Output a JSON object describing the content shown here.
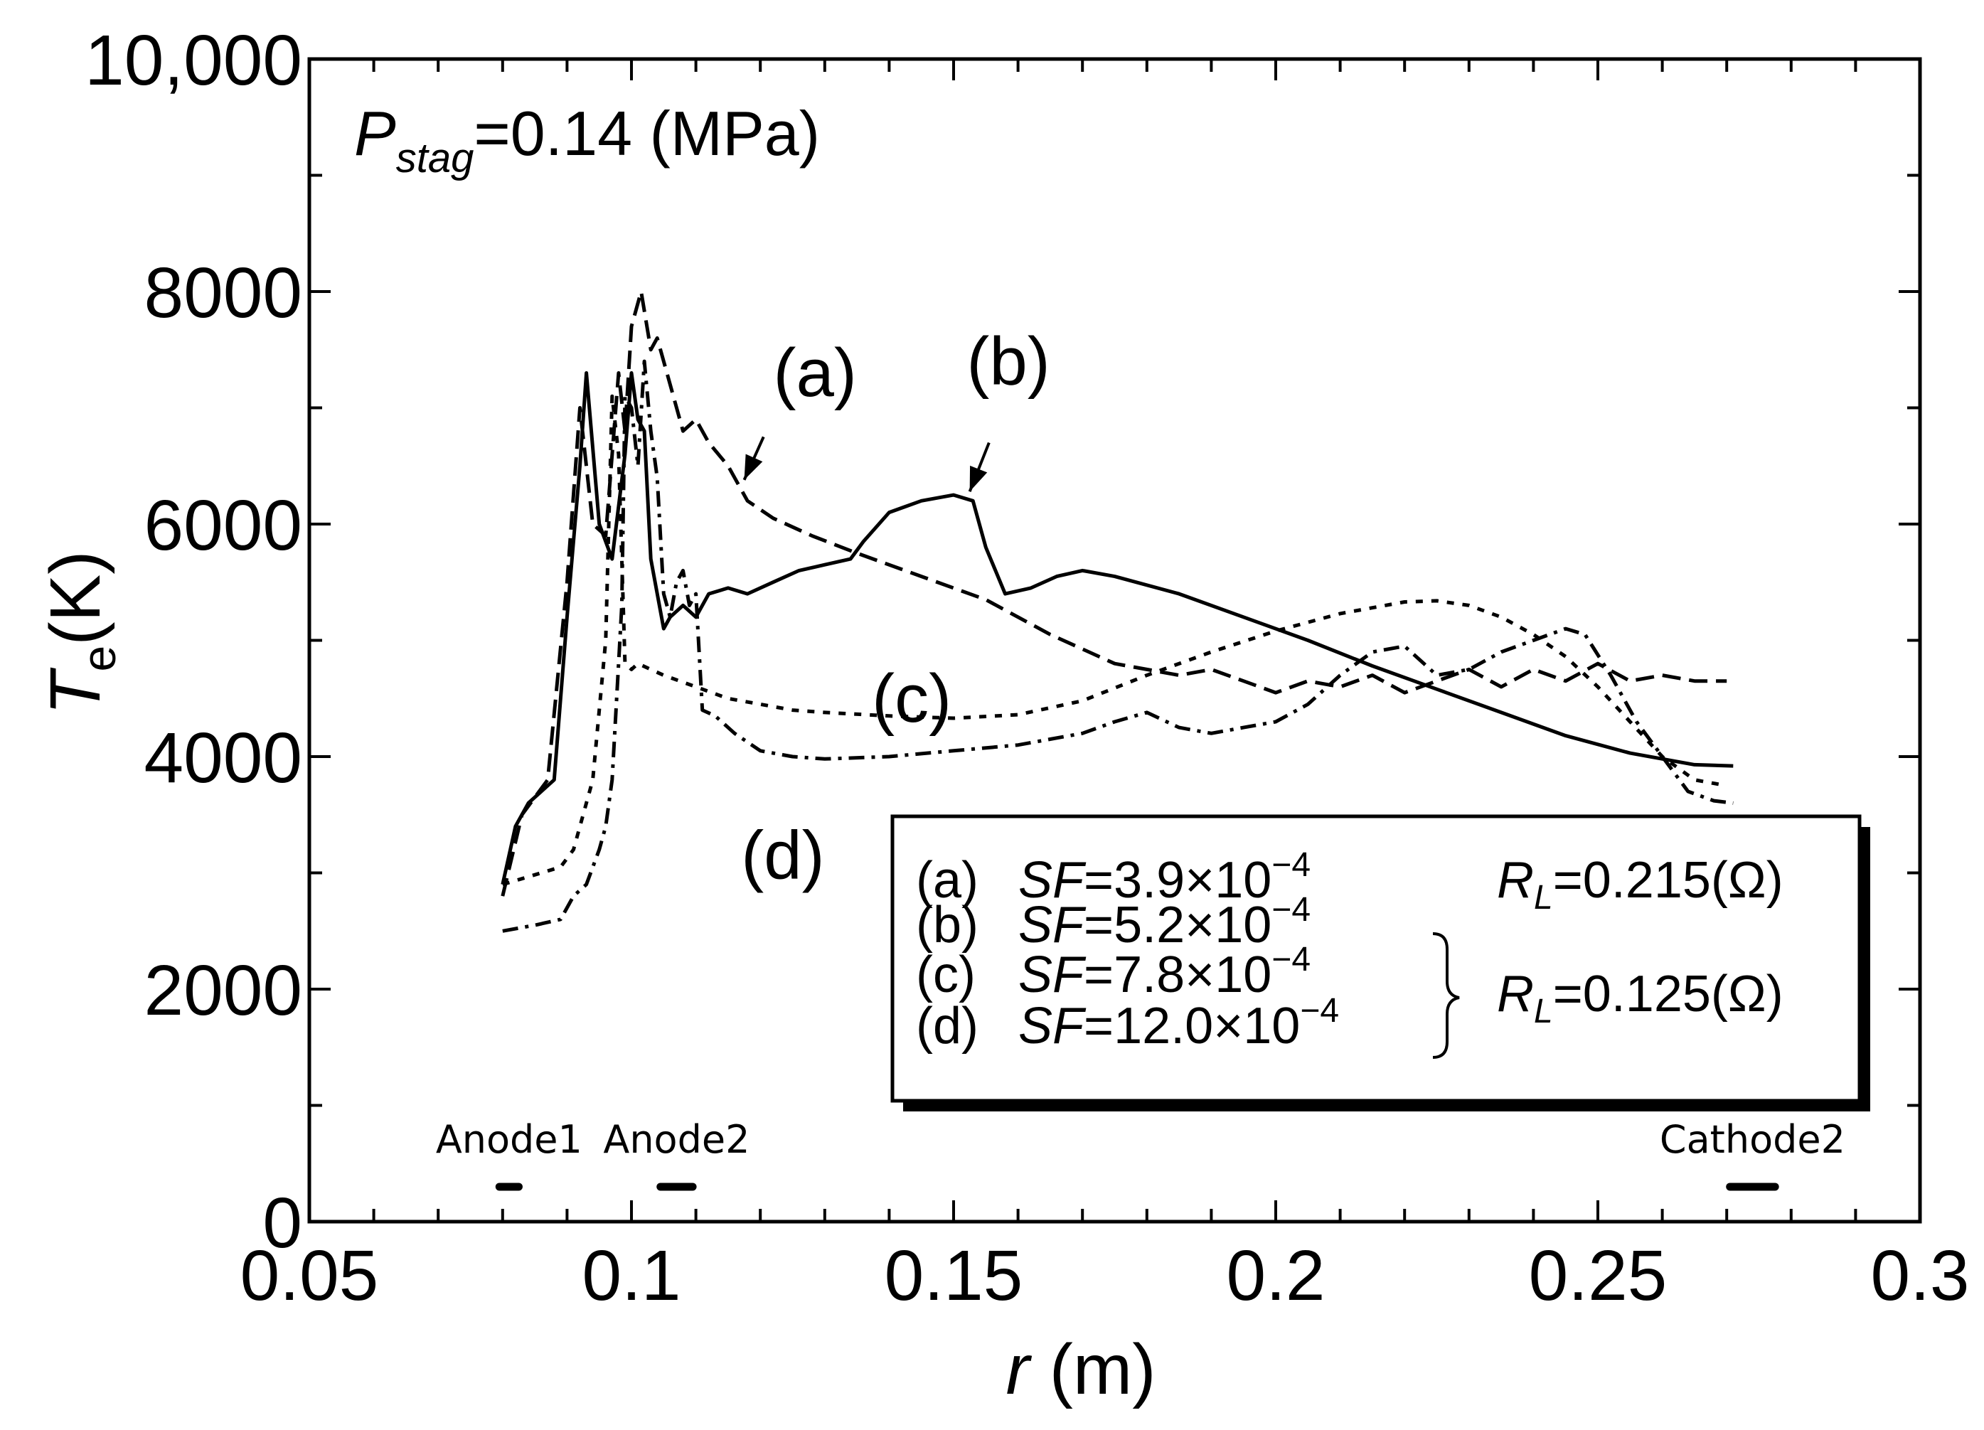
{
  "chart_data": {
    "type": "line",
    "title": "",
    "annotation": {
      "italic": "P",
      "sub": "stag",
      "text": "=0.14 (MPa)"
    },
    "xlabel": {
      "italic": "r",
      "text": " (m)"
    },
    "ylabel": {
      "italic": "T",
      "sub": "e",
      "text": "(K)"
    },
    "xlim": [
      0.05,
      0.3
    ],
    "ylim": [
      0,
      10000
    ],
    "x_ticks": [
      0.05,
      0.1,
      0.15,
      0.2,
      0.25,
      0.3
    ],
    "x_tick_labels": [
      "0.05",
      "0.1",
      "0.15",
      "0.2",
      "0.25",
      "0.3"
    ],
    "y_ticks": [
      0,
      2000,
      4000,
      6000,
      8000,
      10000
    ],
    "y_tick_labels": [
      "0",
      "2000",
      "4000",
      "6000",
      "8000",
      "10,000"
    ],
    "series": [
      {
        "name": "(a)",
        "style": "dashed",
        "x": [
          0.08,
          0.083,
          0.087,
          0.09,
          0.092,
          0.094,
          0.096,
          0.098,
          0.099,
          0.1,
          0.1015,
          0.103,
          0.104,
          0.106,
          0.108,
          0.11,
          0.112,
          0.115,
          0.118,
          0.122,
          0.128,
          0.135,
          0.145,
          0.155,
          0.165,
          0.175,
          0.185,
          0.19,
          0.195,
          0.2,
          0.205,
          0.21,
          0.215,
          0.22,
          0.225,
          0.23,
          0.235,
          0.24,
          0.245,
          0.25,
          0.255,
          0.26,
          0.265,
          0.27
        ],
        "y": [
          2800,
          3500,
          3800,
          5500,
          7000,
          6000,
          5900,
          7300,
          6800,
          7700,
          8000,
          7500,
          7600,
          7200,
          6800,
          6900,
          6700,
          6500,
          6200,
          6050,
          5900,
          5750,
          5550,
          5350,
          5050,
          4800,
          4700,
          4750,
          4650,
          4550,
          4650,
          4600,
          4700,
          4550,
          4650,
          4750,
          4600,
          4750,
          4650,
          4800,
          4650,
          4700,
          4650,
          4650
        ]
      },
      {
        "name": "(b)",
        "style": "solid",
        "x": [
          0.08,
          0.082,
          0.084,
          0.088,
          0.09,
          0.092,
          0.093,
          0.095,
          0.097,
          0.099,
          0.1,
          0.101,
          0.102,
          0.103,
          0.105,
          0.106,
          0.108,
          0.11,
          0.112,
          0.115,
          0.118,
          0.122,
          0.126,
          0.13,
          0.134,
          0.136,
          0.14,
          0.145,
          0.15,
          0.153,
          0.155,
          0.158,
          0.162,
          0.166,
          0.17,
          0.175,
          0.185,
          0.195,
          0.205,
          0.215,
          0.225,
          0.235,
          0.245,
          0.255,
          0.265,
          0.271
        ],
        "y": [
          2900,
          3400,
          3600,
          3800,
          5200,
          6500,
          7300,
          6000,
          5700,
          6600,
          7300,
          6900,
          6800,
          5700,
          5100,
          5200,
          5300,
          5200,
          5400,
          5450,
          5400,
          5500,
          5600,
          5650,
          5700,
          5850,
          6100,
          6200,
          6250,
          6200,
          5800,
          5400,
          5450,
          5550,
          5600,
          5550,
          5400,
          5200,
          5000,
          4780,
          4580,
          4380,
          4180,
          4030,
          3930,
          3920
        ]
      },
      {
        "name": "(c)",
        "style": "dotted",
        "x": [
          0.08,
          0.083,
          0.086,
          0.089,
          0.091,
          0.094,
          0.096,
          0.097,
          0.098,
          0.099,
          0.1,
          0.101,
          0.103,
          0.105,
          0.11,
          0.115,
          0.12,
          0.125,
          0.13,
          0.14,
          0.15,
          0.16,
          0.17,
          0.18,
          0.19,
          0.2,
          0.21,
          0.22,
          0.225,
          0.23,
          0.235,
          0.24,
          0.245,
          0.25,
          0.255,
          0.26,
          0.265,
          0.27
        ],
        "y": [
          2900,
          2950,
          3000,
          3050,
          3200,
          3800,
          5000,
          7100,
          6600,
          4800,
          4750,
          4800,
          4750,
          4700,
          4600,
          4500,
          4450,
          4400,
          4380,
          4350,
          4330,
          4360,
          4480,
          4700,
          4900,
          5080,
          5230,
          5330,
          5340,
          5300,
          5200,
          5050,
          4860,
          4600,
          4300,
          4000,
          3800,
          3750
        ]
      },
      {
        "name": "(d)",
        "style": "dash-dot",
        "x": [
          0.08,
          0.085,
          0.089,
          0.091,
          0.093,
          0.095,
          0.096,
          0.097,
          0.098,
          0.0985,
          0.099,
          0.1,
          0.101,
          0.102,
          0.103,
          0.104,
          0.105,
          0.106,
          0.107,
          0.108,
          0.109,
          0.11,
          0.111,
          0.113,
          0.116,
          0.12,
          0.125,
          0.13,
          0.14,
          0.15,
          0.16,
          0.17,
          0.175,
          0.18,
          0.185,
          0.19,
          0.195,
          0.2,
          0.205,
          0.21,
          0.215,
          0.22,
          0.225,
          0.23,
          0.235,
          0.24,
          0.245,
          0.248,
          0.252,
          0.256,
          0.26,
          0.264,
          0.268,
          0.271
        ],
        "y": [
          2500,
          2550,
          2600,
          2800,
          2900,
          3200,
          3400,
          3800,
          4800,
          5300,
          7100,
          7000,
          6500,
          7400,
          6800,
          6400,
          5400,
          5200,
          5500,
          5600,
          5300,
          5400,
          4400,
          4350,
          4200,
          4050,
          4000,
          3980,
          4000,
          4050,
          4100,
          4200,
          4300,
          4380,
          4250,
          4200,
          4250,
          4300,
          4450,
          4700,
          4900,
          4950,
          4700,
          4750,
          4900,
          5000,
          5100,
          5050,
          4700,
          4300,
          4000,
          3700,
          3620,
          3600
        ]
      }
    ],
    "curve_labels": [
      {
        "label": "(a)",
        "x": 0.1285,
        "y": 7100
      },
      {
        "label": "(b)",
        "x": 0.1585,
        "y": 7200
      },
      {
        "label": "(c)",
        "x": 0.1435,
        "y": 4300
      },
      {
        "label": "(d)",
        "x": 0.1235,
        "y": 2950
      }
    ],
    "arrows": [
      {
        "from": [
          0.1205,
          6750
        ],
        "to": [
          0.1175,
          6380
        ]
      },
      {
        "from": [
          0.1555,
          6700
        ],
        "to": [
          0.1525,
          6280
        ]
      }
    ],
    "legend": {
      "entries": [
        {
          "id": "(a)",
          "sf_label": "SF",
          "sf_value": "=3.9×10",
          "exponent": "−4"
        },
        {
          "id": "(b)",
          "sf_label": "SF",
          "sf_value": "=5.2×10",
          "exponent": "−4"
        },
        {
          "id": "(c)",
          "sf_label": "SF",
          "sf_value": "=7.8×10",
          "exponent": "−4"
        },
        {
          "id": "(d)",
          "sf_label": "SF",
          "sf_value": "=12.0×10",
          "exponent": "−4"
        }
      ],
      "rl_a": {
        "italic": "R",
        "sub": "L",
        "text": "=0.215(Ω)"
      },
      "rl_bcd": {
        "italic": "R",
        "sub": "L",
        "text": "=0.125(Ω)"
      }
    },
    "electrodes": [
      {
        "label": "Anode1",
        "x_start": 0.0795,
        "x_end": 0.0825,
        "y": 300
      },
      {
        "label": "Anode2",
        "x_start": 0.1045,
        "x_end": 0.1095,
        "y": 300
      },
      {
        "label": "Cathode2",
        "x_start": 0.2705,
        "x_end": 0.2775,
        "y": 300
      }
    ]
  }
}
